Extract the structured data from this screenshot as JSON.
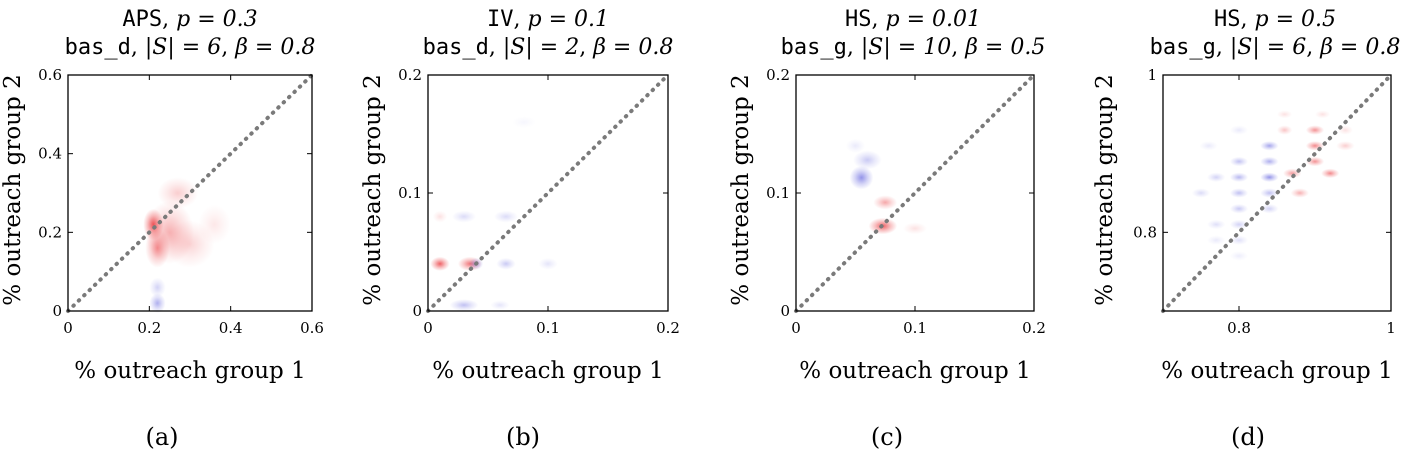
{
  "figure": {
    "captions": [
      "(a)",
      "(b)",
      "(c)",
      "(d)"
    ]
  },
  "chart_data": [
    {
      "type": "heatmap",
      "title_line1": {
        "dataset": "APS",
        "param": "p = 0.3"
      },
      "title_line2": {
        "method": "bas_d",
        "size": "|S| = 6",
        "beta": "β = 0.8"
      },
      "xlabel": "% outreach group 1",
      "ylabel": "% outreach group 2",
      "xlim": [
        0,
        0.6
      ],
      "ylim": [
        0,
        0.6
      ],
      "xticks": [
        0,
        0.2,
        0.4,
        0.6
      ],
      "xtick_labels": [
        "0",
        "0.2",
        "0.4",
        "0.6"
      ],
      "yticks": [
        0,
        0.2,
        0.4,
        0.6
      ],
      "ytick_labels": [
        "0",
        "0.2",
        "0.4",
        "0.6"
      ],
      "diagonal": "y = x (dotted gray)",
      "colors": {
        "positive": "#e8252a",
        "negative": "#3a3ad6"
      },
      "blobs": [
        {
          "x": 0.21,
          "y": 0.22,
          "rx": 0.025,
          "ry": 0.04,
          "intensity": 0.85,
          "sign": "positive"
        },
        {
          "x": 0.22,
          "y": 0.16,
          "rx": 0.03,
          "ry": 0.05,
          "intensity": 0.55,
          "sign": "positive"
        },
        {
          "x": 0.25,
          "y": 0.2,
          "rx": 0.06,
          "ry": 0.08,
          "intensity": 0.4,
          "sign": "positive"
        },
        {
          "x": 0.3,
          "y": 0.17,
          "rx": 0.06,
          "ry": 0.06,
          "intensity": 0.22,
          "sign": "positive"
        },
        {
          "x": 0.27,
          "y": 0.3,
          "rx": 0.05,
          "ry": 0.04,
          "intensity": 0.25,
          "sign": "positive"
        },
        {
          "x": 0.36,
          "y": 0.22,
          "rx": 0.04,
          "ry": 0.05,
          "intensity": 0.12,
          "sign": "positive"
        },
        {
          "x": 0.22,
          "y": 0.02,
          "rx": 0.02,
          "ry": 0.025,
          "intensity": 0.45,
          "sign": "negative"
        },
        {
          "x": 0.22,
          "y": 0.06,
          "rx": 0.02,
          "ry": 0.025,
          "intensity": 0.25,
          "sign": "negative"
        }
      ]
    },
    {
      "type": "heatmap",
      "title_line1": {
        "dataset": "IV",
        "param": "p = 0.1"
      },
      "title_line2": {
        "method": "bas_d",
        "size": "|S| = 2",
        "beta": "β = 0.8"
      },
      "xlabel": "% outreach group 1",
      "ylabel": "% outreach group 2",
      "xlim": [
        0,
        0.2
      ],
      "ylim": [
        0,
        0.2
      ],
      "xticks": [
        0,
        0.1,
        0.2
      ],
      "xtick_labels": [
        "0",
        "0.1",
        "0.2"
      ],
      "yticks": [
        0,
        0.1,
        0.2
      ],
      "ytick_labels": [
        "0",
        "0.1",
        "0.2"
      ],
      "diagonal": "y = x (dotted gray)",
      "colors": {
        "positive": "#e8252a",
        "negative": "#3a3ad6"
      },
      "blobs": [
        {
          "x": 0.01,
          "y": 0.04,
          "rx": 0.008,
          "ry": 0.006,
          "intensity": 0.8,
          "sign": "positive"
        },
        {
          "x": 0.035,
          "y": 0.04,
          "rx": 0.01,
          "ry": 0.006,
          "intensity": 0.7,
          "sign": "positive"
        },
        {
          "x": 0.04,
          "y": 0.04,
          "rx": 0.006,
          "ry": 0.005,
          "intensity": 0.45,
          "sign": "negative"
        },
        {
          "x": 0.065,
          "y": 0.04,
          "rx": 0.008,
          "ry": 0.005,
          "intensity": 0.3,
          "sign": "negative"
        },
        {
          "x": 0.1,
          "y": 0.04,
          "rx": 0.008,
          "ry": 0.005,
          "intensity": 0.15,
          "sign": "negative"
        },
        {
          "x": 0.03,
          "y": 0.08,
          "rx": 0.01,
          "ry": 0.005,
          "intensity": 0.2,
          "sign": "negative"
        },
        {
          "x": 0.065,
          "y": 0.08,
          "rx": 0.01,
          "ry": 0.005,
          "intensity": 0.2,
          "sign": "negative"
        },
        {
          "x": 0.01,
          "y": 0.08,
          "rx": 0.006,
          "ry": 0.005,
          "intensity": 0.15,
          "sign": "positive"
        },
        {
          "x": 0.03,
          "y": 0.005,
          "rx": 0.012,
          "ry": 0.005,
          "intensity": 0.35,
          "sign": "negative"
        },
        {
          "x": 0.06,
          "y": 0.005,
          "rx": 0.008,
          "ry": 0.004,
          "intensity": 0.15,
          "sign": "negative"
        },
        {
          "x": 0.08,
          "y": 0.16,
          "rx": 0.01,
          "ry": 0.005,
          "intensity": 0.05,
          "sign": "negative"
        }
      ]
    },
    {
      "type": "heatmap",
      "title_line1": {
        "dataset": "HS",
        "param": "p = 0.01"
      },
      "title_line2": {
        "method": "bas_g",
        "size": "|S| = 10",
        "beta": "β = 0.5"
      },
      "xlabel": "% outreach group 1",
      "ylabel": "% outreach group 2",
      "xlim": [
        0,
        0.2
      ],
      "ylim": [
        0,
        0.2
      ],
      "xticks": [
        0,
        0.1,
        0.2
      ],
      "xtick_labels": [
        "0",
        "0.1",
        "0.2"
      ],
      "yticks": [
        0,
        0.1,
        0.2
      ],
      "ytick_labels": [
        "0",
        "0.1",
        "0.2"
      ],
      "diagonal": "y = x (dotted gray)",
      "colors": {
        "positive": "#e8252a",
        "negative": "#3a3ad6"
      },
      "blobs": [
        {
          "x": 0.055,
          "y": 0.113,
          "rx": 0.01,
          "ry": 0.01,
          "intensity": 0.6,
          "sign": "negative"
        },
        {
          "x": 0.06,
          "y": 0.128,
          "rx": 0.012,
          "ry": 0.008,
          "intensity": 0.3,
          "sign": "negative"
        },
        {
          "x": 0.05,
          "y": 0.14,
          "rx": 0.008,
          "ry": 0.006,
          "intensity": 0.12,
          "sign": "negative"
        },
        {
          "x": 0.073,
          "y": 0.072,
          "rx": 0.012,
          "ry": 0.007,
          "intensity": 0.8,
          "sign": "positive"
        },
        {
          "x": 0.075,
          "y": 0.092,
          "rx": 0.01,
          "ry": 0.006,
          "intensity": 0.45,
          "sign": "positive"
        },
        {
          "x": 0.1,
          "y": 0.07,
          "rx": 0.01,
          "ry": 0.005,
          "intensity": 0.15,
          "sign": "positive"
        }
      ]
    },
    {
      "type": "heatmap",
      "title_line1": {
        "dataset": "HS",
        "param": "p = 0.5"
      },
      "title_line2": {
        "method": "bas_g",
        "size": "|S| = 6",
        "beta": "β = 0.8"
      },
      "xlabel": "% outreach group 1",
      "ylabel": "% outreach group 2",
      "xlim": [
        0.7,
        1.0
      ],
      "ylim": [
        0.7,
        1.0
      ],
      "xticks": [
        0.8,
        1.0
      ],
      "xtick_labels": [
        "0.8",
        "1"
      ],
      "yticks": [
        0.8,
        1.0
      ],
      "ytick_labels": [
        "0.8",
        "1"
      ],
      "diagonal": "y = x (dotted gray)",
      "colors": {
        "positive": "#e8252a",
        "negative": "#3a3ad6"
      },
      "blobs": [
        {
          "x": 0.9,
          "y": 0.93,
          "rx": 0.012,
          "ry": 0.006,
          "intensity": 0.55,
          "sign": "positive"
        },
        {
          "x": 0.9,
          "y": 0.91,
          "rx": 0.012,
          "ry": 0.006,
          "intensity": 0.6,
          "sign": "positive"
        },
        {
          "x": 0.9,
          "y": 0.89,
          "rx": 0.012,
          "ry": 0.006,
          "intensity": 0.55,
          "sign": "positive"
        },
        {
          "x": 0.92,
          "y": 0.875,
          "rx": 0.012,
          "ry": 0.006,
          "intensity": 0.6,
          "sign": "positive"
        },
        {
          "x": 0.87,
          "y": 0.875,
          "rx": 0.012,
          "ry": 0.006,
          "intensity": 0.5,
          "sign": "positive"
        },
        {
          "x": 0.88,
          "y": 0.85,
          "rx": 0.012,
          "ry": 0.006,
          "intensity": 0.4,
          "sign": "positive"
        },
        {
          "x": 0.84,
          "y": 0.91,
          "rx": 0.012,
          "ry": 0.006,
          "intensity": 0.5,
          "sign": "negative"
        },
        {
          "x": 0.84,
          "y": 0.89,
          "rx": 0.012,
          "ry": 0.006,
          "intensity": 0.45,
          "sign": "negative"
        },
        {
          "x": 0.84,
          "y": 0.87,
          "rx": 0.012,
          "ry": 0.006,
          "intensity": 0.6,
          "sign": "negative"
        },
        {
          "x": 0.8,
          "y": 0.87,
          "rx": 0.012,
          "ry": 0.006,
          "intensity": 0.4,
          "sign": "negative"
        },
        {
          "x": 0.8,
          "y": 0.89,
          "rx": 0.012,
          "ry": 0.006,
          "intensity": 0.35,
          "sign": "negative"
        },
        {
          "x": 0.77,
          "y": 0.87,
          "rx": 0.012,
          "ry": 0.006,
          "intensity": 0.25,
          "sign": "negative"
        },
        {
          "x": 0.75,
          "y": 0.85,
          "rx": 0.012,
          "ry": 0.006,
          "intensity": 0.2,
          "sign": "negative"
        },
        {
          "x": 0.8,
          "y": 0.85,
          "rx": 0.012,
          "ry": 0.006,
          "intensity": 0.35,
          "sign": "negative"
        },
        {
          "x": 0.84,
          "y": 0.85,
          "rx": 0.012,
          "ry": 0.006,
          "intensity": 0.35,
          "sign": "negative"
        },
        {
          "x": 0.8,
          "y": 0.83,
          "rx": 0.012,
          "ry": 0.006,
          "intensity": 0.3,
          "sign": "negative"
        },
        {
          "x": 0.84,
          "y": 0.83,
          "rx": 0.012,
          "ry": 0.006,
          "intensity": 0.25,
          "sign": "negative"
        },
        {
          "x": 0.8,
          "y": 0.81,
          "rx": 0.012,
          "ry": 0.006,
          "intensity": 0.25,
          "sign": "negative"
        },
        {
          "x": 0.77,
          "y": 0.81,
          "rx": 0.012,
          "ry": 0.006,
          "intensity": 0.18,
          "sign": "negative"
        },
        {
          "x": 0.8,
          "y": 0.79,
          "rx": 0.012,
          "ry": 0.006,
          "intensity": 0.18,
          "sign": "negative"
        },
        {
          "x": 0.77,
          "y": 0.79,
          "rx": 0.012,
          "ry": 0.006,
          "intensity": 0.12,
          "sign": "negative"
        },
        {
          "x": 0.8,
          "y": 0.77,
          "rx": 0.012,
          "ry": 0.006,
          "intensity": 0.1,
          "sign": "negative"
        },
        {
          "x": 0.76,
          "y": 0.91,
          "rx": 0.012,
          "ry": 0.006,
          "intensity": 0.12,
          "sign": "negative"
        },
        {
          "x": 0.8,
          "y": 0.93,
          "rx": 0.012,
          "ry": 0.006,
          "intensity": 0.12,
          "sign": "negative"
        },
        {
          "x": 0.94,
          "y": 0.91,
          "rx": 0.012,
          "ry": 0.006,
          "intensity": 0.25,
          "sign": "positive"
        },
        {
          "x": 0.94,
          "y": 0.93,
          "rx": 0.01,
          "ry": 0.006,
          "intensity": 0.15,
          "sign": "positive"
        },
        {
          "x": 0.86,
          "y": 0.93,
          "rx": 0.01,
          "ry": 0.006,
          "intensity": 0.3,
          "sign": "positive"
        },
        {
          "x": 0.86,
          "y": 0.95,
          "rx": 0.01,
          "ry": 0.005,
          "intensity": 0.15,
          "sign": "positive"
        },
        {
          "x": 0.91,
          "y": 0.95,
          "rx": 0.01,
          "ry": 0.005,
          "intensity": 0.15,
          "sign": "positive"
        }
      ]
    }
  ]
}
